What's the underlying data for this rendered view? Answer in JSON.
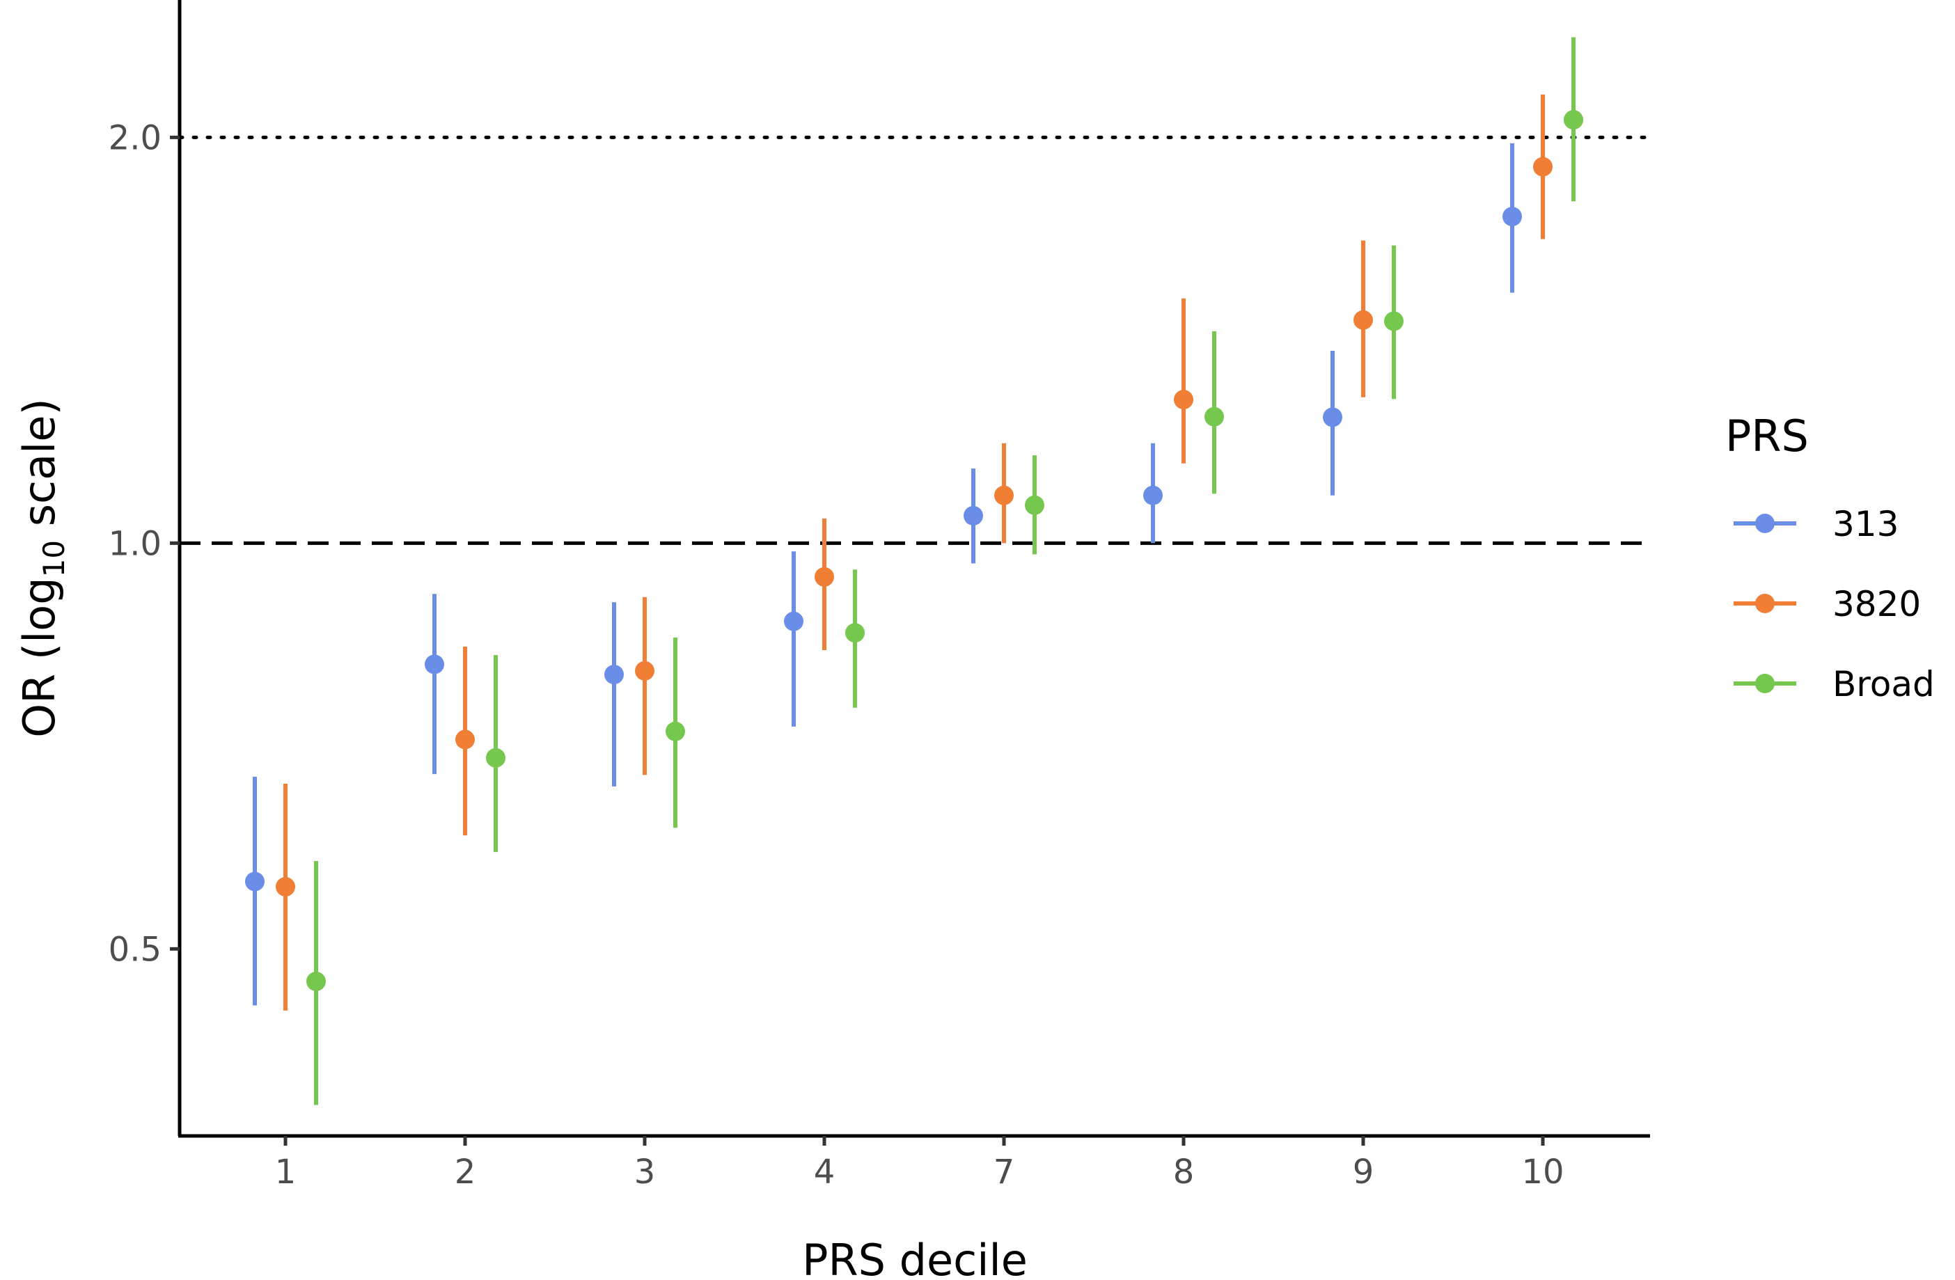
{
  "chart_data": {
    "type": "scatter",
    "subtype": "point-range",
    "xlabel": "PRS decile",
    "ylabel": "OR (log10 scale)",
    "ylabel_parts": {
      "pre": "OR (log",
      "sub": "10",
      "post": " scale)"
    },
    "yscale": "log10",
    "ylim": [
      0.365,
      2.52
    ],
    "yticks": [
      0.5,
      1.0,
      2.0
    ],
    "ytick_labels": [
      "0.5",
      "1.0",
      "2.0"
    ],
    "categories": [
      "1",
      "2",
      "3",
      "4",
      "7",
      "8",
      "9",
      "10"
    ],
    "reference_lines": [
      {
        "y": 1.0,
        "style": "dashed"
      },
      {
        "y": 2.0,
        "style": "dotted"
      }
    ],
    "legend_title": "PRS",
    "legend_position": "right",
    "series": [
      {
        "name": "313",
        "color": "#6A8EE8",
        "values": [
          0.561,
          0.813,
          0.799,
          0.875,
          1.048,
          1.085,
          1.24,
          1.747
        ],
        "lower": [
          0.454,
          0.674,
          0.66,
          0.731,
          0.966,
          1.0,
          1.085,
          1.534
        ],
        "upper": [
          0.671,
          0.917,
          0.904,
          0.986,
          1.136,
          1.186,
          1.389,
          1.98
        ]
      },
      {
        "name": "3820",
        "color": "#F07F35",
        "values": [
          0.556,
          0.715,
          0.804,
          0.944,
          1.085,
          1.278,
          1.464,
          1.902
        ],
        "lower": [
          0.45,
          0.607,
          0.673,
          0.833,
          1.0,
          1.146,
          1.283,
          1.681
        ],
        "upper": [
          0.663,
          0.838,
          0.912,
          1.043,
          1.186,
          1.519,
          1.677,
          2.152
        ]
      },
      {
        "name": "Broad",
        "color": "#76C74E",
        "values": [
          0.473,
          0.693,
          0.725,
          0.858,
          1.067,
          1.241,
          1.461,
          2.061
        ],
        "lower": [
          0.383,
          0.59,
          0.615,
          0.755,
          0.981,
          1.088,
          1.279,
          1.793
        ],
        "upper": [
          0.581,
          0.826,
          0.851,
          0.956,
          1.162,
          1.436,
          1.663,
          2.373
        ]
      }
    ]
  }
}
